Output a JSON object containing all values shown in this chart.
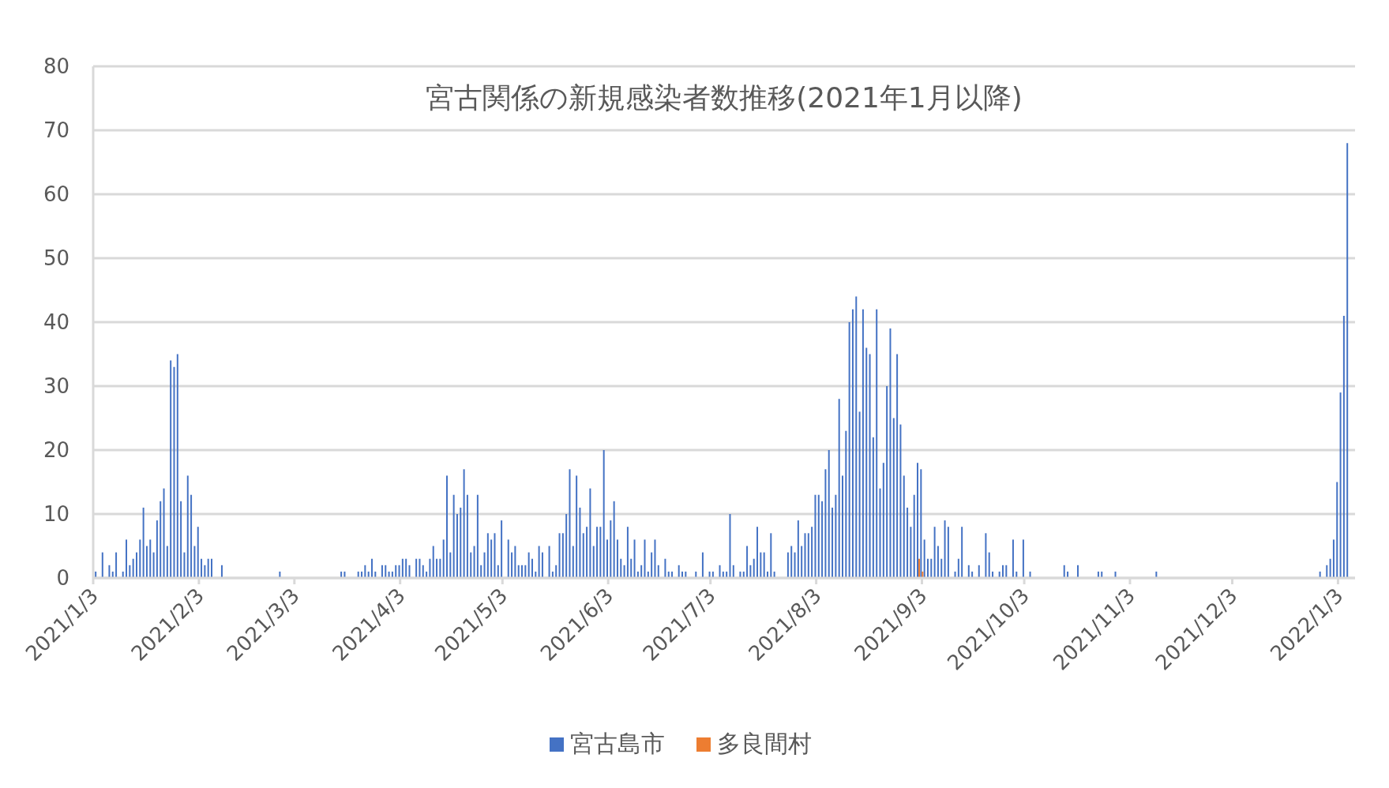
{
  "chart_data": {
    "type": "bar",
    "title": "宮古関係の新規感染者数推移(2021年1月以降)",
    "series": [
      {
        "name": "宮古島市",
        "color": "#4472c4",
        "x": [
          "2021-01-04",
          "2021-01-06",
          "2021-01-08",
          "2021-01-09",
          "2021-01-10",
          "2021-01-12",
          "2021-01-13",
          "2021-01-14",
          "2021-01-15",
          "2021-01-16",
          "2021-01-17",
          "2021-01-18",
          "2021-01-19",
          "2021-01-20",
          "2021-01-21",
          "2021-01-22",
          "2021-01-23",
          "2021-01-24",
          "2021-01-25",
          "2021-01-26",
          "2021-01-27",
          "2021-01-28",
          "2021-01-29",
          "2021-01-30",
          "2021-01-31",
          "2021-02-01",
          "2021-02-02",
          "2021-02-03",
          "2021-02-04",
          "2021-02-05",
          "2021-02-06",
          "2021-02-07",
          "2021-02-10",
          "2021-02-27",
          "2021-03-17",
          "2021-03-18",
          "2021-03-22",
          "2021-03-23",
          "2021-03-24",
          "2021-03-25",
          "2021-03-26",
          "2021-03-27",
          "2021-03-29",
          "2021-03-30",
          "2021-03-31",
          "2021-04-01",
          "2021-04-02",
          "2021-04-03",
          "2021-04-04",
          "2021-04-05",
          "2021-04-06",
          "2021-04-08",
          "2021-04-09",
          "2021-04-10",
          "2021-04-11",
          "2021-04-12",
          "2021-04-13",
          "2021-04-14",
          "2021-04-15",
          "2021-04-16",
          "2021-04-17",
          "2021-04-18",
          "2021-04-19",
          "2021-04-20",
          "2021-04-21",
          "2021-04-22",
          "2021-04-23",
          "2021-04-24",
          "2021-04-25",
          "2021-04-26",
          "2021-04-27",
          "2021-04-28",
          "2021-04-29",
          "2021-04-30",
          "2021-05-01",
          "2021-05-02",
          "2021-05-03",
          "2021-05-05",
          "2021-05-06",
          "2021-05-07",
          "2021-05-08",
          "2021-05-09",
          "2021-05-10",
          "2021-05-11",
          "2021-05-12",
          "2021-05-13",
          "2021-05-14",
          "2021-05-15",
          "2021-05-17",
          "2021-05-18",
          "2021-05-19",
          "2021-05-20",
          "2021-05-21",
          "2021-05-22",
          "2021-05-23",
          "2021-05-24",
          "2021-05-25",
          "2021-05-26",
          "2021-05-27",
          "2021-05-28",
          "2021-05-29",
          "2021-05-30",
          "2021-05-31",
          "2021-06-01",
          "2021-06-02",
          "2021-06-03",
          "2021-06-04",
          "2021-06-05",
          "2021-06-06",
          "2021-06-07",
          "2021-06-08",
          "2021-06-09",
          "2021-06-10",
          "2021-06-11",
          "2021-06-12",
          "2021-06-13",
          "2021-06-14",
          "2021-06-15",
          "2021-06-16",
          "2021-06-17",
          "2021-06-18",
          "2021-06-20",
          "2021-06-21",
          "2021-06-22",
          "2021-06-24",
          "2021-06-25",
          "2021-06-26",
          "2021-06-29",
          "2021-07-01",
          "2021-07-03",
          "2021-07-04",
          "2021-07-06",
          "2021-07-07",
          "2021-07-08",
          "2021-07-09",
          "2021-07-10",
          "2021-07-12",
          "2021-07-13",
          "2021-07-14",
          "2021-07-15",
          "2021-07-16",
          "2021-07-17",
          "2021-07-18",
          "2021-07-19",
          "2021-07-20",
          "2021-07-21",
          "2021-07-22",
          "2021-07-26",
          "2021-07-27",
          "2021-07-28",
          "2021-07-29",
          "2021-07-30",
          "2021-07-31",
          "2021-08-01",
          "2021-08-02",
          "2021-08-03",
          "2021-08-04",
          "2021-08-05",
          "2021-08-06",
          "2021-08-07",
          "2021-08-08",
          "2021-08-09",
          "2021-08-10",
          "2021-08-11",
          "2021-08-12",
          "2021-08-13",
          "2021-08-14",
          "2021-08-15",
          "2021-08-16",
          "2021-08-17",
          "2021-08-18",
          "2021-08-19",
          "2021-08-20",
          "2021-08-21",
          "2021-08-22",
          "2021-08-23",
          "2021-08-24",
          "2021-08-25",
          "2021-08-26",
          "2021-08-27",
          "2021-08-28",
          "2021-08-29",
          "2021-08-30",
          "2021-08-31",
          "2021-09-01",
          "2021-09-02",
          "2021-09-03",
          "2021-09-04",
          "2021-09-05",
          "2021-09-06",
          "2021-09-07",
          "2021-09-08",
          "2021-09-09",
          "2021-09-10",
          "2021-09-11",
          "2021-09-13",
          "2021-09-14",
          "2021-09-15",
          "2021-09-17",
          "2021-09-18",
          "2021-09-20",
          "2021-09-22",
          "2021-09-23",
          "2021-09-24",
          "2021-09-26",
          "2021-09-27",
          "2021-09-28",
          "2021-09-30",
          "2021-10-01",
          "2021-10-03",
          "2021-10-05",
          "2021-10-15",
          "2021-10-16",
          "2021-10-19",
          "2021-10-25",
          "2021-10-26",
          "2021-10-30",
          "2021-11-11",
          "2021-12-29",
          "2021-12-31",
          "2022-01-01",
          "2022-01-02",
          "2022-01-03",
          "2022-01-04",
          "2022-01-05",
          "2022-01-06"
        ],
        "values": [
          1,
          4,
          2,
          1,
          4,
          1,
          6,
          2,
          3,
          4,
          6,
          11,
          5,
          6,
          4,
          9,
          12,
          14,
          5,
          34,
          33,
          35,
          12,
          4,
          16,
          13,
          5,
          8,
          3,
          2,
          3,
          3,
          2,
          1,
          1,
          1,
          1,
          1,
          2,
          1,
          3,
          1,
          2,
          2,
          1,
          1,
          2,
          2,
          3,
          3,
          2,
          3,
          3,
          2,
          1,
          3,
          5,
          3,
          3,
          6,
          16,
          4,
          13,
          10,
          11,
          17,
          13,
          4,
          5,
          13,
          2,
          4,
          7,
          6,
          7,
          2,
          9,
          6,
          4,
          5,
          2,
          2,
          2,
          4,
          3,
          1,
          5,
          4,
          5,
          1,
          2,
          7,
          7,
          10,
          17,
          5,
          16,
          11,
          7,
          8,
          14,
          5,
          8,
          8,
          20,
          6,
          9,
          12,
          6,
          3,
          2,
          8,
          3,
          6,
          1,
          2,
          6,
          1,
          4,
          6,
          2,
          3,
          1,
          1,
          2,
          1,
          1,
          1,
          4,
          1,
          1,
          2,
          1,
          1,
          10,
          2,
          1,
          1,
          5,
          2,
          3,
          8,
          4,
          4,
          1,
          7,
          1,
          4,
          5,
          4,
          9,
          5,
          7,
          7,
          8,
          13,
          13,
          12,
          17,
          20,
          11,
          13,
          28,
          16,
          23,
          40,
          42,
          44,
          26,
          42,
          36,
          35,
          22,
          42,
          14,
          18,
          30,
          39,
          25,
          35,
          24,
          16,
          11,
          8,
          13,
          18,
          17,
          6,
          3,
          3,
          8,
          5,
          3,
          9,
          8,
          1,
          3,
          8,
          2,
          1,
          2,
          7,
          4,
          1,
          1,
          2,
          2,
          6,
          1,
          6,
          1,
          2,
          1,
          2,
          1,
          1,
          1,
          1,
          1,
          2,
          3,
          6,
          15,
          29,
          41,
          68
        ]
      },
      {
        "name": "多良間村",
        "color": "#ed7d31",
        "x": [
          "2021-09-02",
          "2021-09-03"
        ],
        "values": [
          3,
          1
        ]
      }
    ],
    "xlim": [
      "2021-01-03",
      "2022-01-08"
    ],
    "xticks": [
      {
        "value": "2021-01-03",
        "label": "2021/1/3"
      },
      {
        "value": "2021-02-03",
        "label": "2021/2/3"
      },
      {
        "value": "2021-03-03",
        "label": "2021/3/3"
      },
      {
        "value": "2021-04-03",
        "label": "2021/4/3"
      },
      {
        "value": "2021-05-03",
        "label": "2021/5/3"
      },
      {
        "value": "2021-06-03",
        "label": "2021/6/3"
      },
      {
        "value": "2021-07-03",
        "label": "2021/7/3"
      },
      {
        "value": "2021-08-03",
        "label": "2021/8/3"
      },
      {
        "value": "2021-09-03",
        "label": "2021/9/3"
      },
      {
        "value": "2021-10-03",
        "label": "2021/10/3"
      },
      {
        "value": "2021-11-03",
        "label": "2021/11/3"
      },
      {
        "value": "2021-12-03",
        "label": "2021/12/3"
      },
      {
        "value": "2022-01-03",
        "label": "2022/1/3"
      }
    ],
    "ylim": [
      0,
      80
    ],
    "yticks": [
      0,
      10,
      20,
      30,
      40,
      50,
      60,
      70,
      80
    ],
    "grid": "y",
    "legend": "bottom"
  }
}
